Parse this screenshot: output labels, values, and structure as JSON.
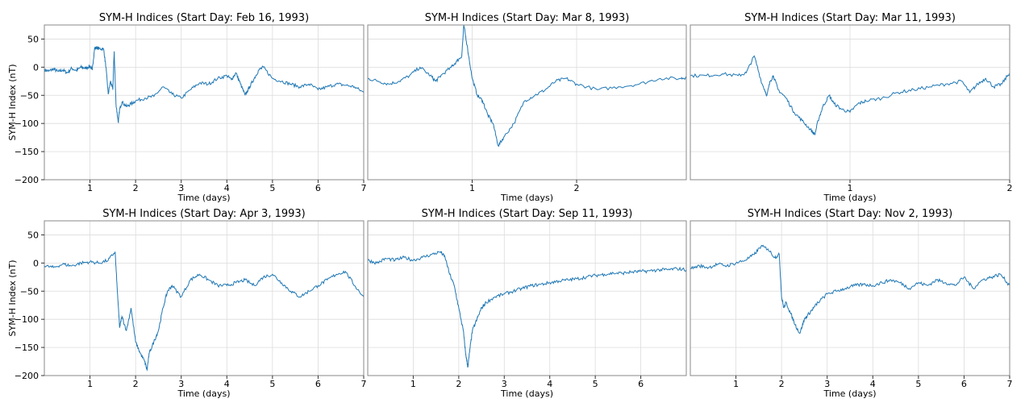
{
  "figure": {
    "ylabel": "SYM-H Index (nT)",
    "line_color": "#1f77b4"
  },
  "chart_data": [
    {
      "type": "line",
      "title": "SYM-H Indices (Start Day: Feb 16, 1993)",
      "xlabel": "Time (days)",
      "xlim": [
        0,
        7
      ],
      "ylim": [
        -200,
        75
      ],
      "xticks": [
        1,
        2,
        3,
        4,
        5,
        6,
        7
      ],
      "yticks": [
        50,
        0,
        -50,
        -100,
        -150,
        -200
      ],
      "grid": true,
      "series": [
        {
          "x": [
            0,
            0.1,
            0.2,
            0.3,
            0.4,
            0.5,
            0.6,
            0.7,
            0.8,
            0.9,
            1.0,
            1.05,
            1.1,
            1.15,
            1.2,
            1.3,
            1.35,
            1.4,
            1.45,
            1.5,
            1.53,
            1.57,
            1.62,
            1.65,
            1.7,
            1.8,
            1.9,
            2.0,
            2.2,
            2.4,
            2.6,
            2.8,
            3.0,
            3.2,
            3.4,
            3.6,
            3.8,
            4.0,
            4.1,
            4.2,
            4.3,
            4.4,
            4.5,
            4.6,
            4.7,
            4.8,
            5.0,
            5.2,
            5.4,
            5.6,
            5.8,
            6.0,
            6.2,
            6.4,
            6.6,
            6.8,
            7.0
          ],
          "y": [
            -5,
            -7,
            -3,
            -8,
            -5,
            -10,
            -2,
            -6,
            0,
            -2,
            2,
            -5,
            33,
            35,
            33,
            32,
            0,
            -48,
            -25,
            -40,
            28,
            -65,
            -98,
            -75,
            -62,
            -70,
            -65,
            -60,
            -55,
            -52,
            -35,
            -48,
            -55,
            -40,
            -28,
            -30,
            -20,
            -15,
            -22,
            -10,
            -30,
            -50,
            -35,
            -20,
            -5,
            0,
            -20,
            -25,
            -30,
            -35,
            -30,
            -40,
            -35,
            -30,
            -32,
            -35,
            -45
          ]
        }
      ]
    },
    {
      "type": "line",
      "title": "SYM-H Indices (Start Day: Mar 8, 1993)",
      "xlabel": "Time (days)",
      "xlim": [
        0,
        3.05
      ],
      "ylim": [
        -200,
        75
      ],
      "xticks": [
        1,
        2
      ],
      "yticks": [],
      "grid": true,
      "series": [
        {
          "x": [
            0,
            0.1,
            0.2,
            0.3,
            0.4,
            0.5,
            0.6,
            0.65,
            0.7,
            0.8,
            0.85,
            0.9,
            0.92,
            0.95,
            1.0,
            1.05,
            1.1,
            1.15,
            1.2,
            1.25,
            1.3,
            1.4,
            1.5,
            1.6,
            1.7,
            1.8,
            1.9,
            2.0,
            2.2,
            2.4,
            2.6,
            2.8,
            3.0,
            3.05
          ],
          "y": [
            -20,
            -25,
            -30,
            -25,
            -15,
            0,
            -15,
            -25,
            -15,
            0,
            10,
            20,
            75,
            40,
            -20,
            -50,
            -60,
            -85,
            -100,
            -140,
            -125,
            -100,
            -60,
            -50,
            -40,
            -25,
            -20,
            -30,
            -40,
            -35,
            -30,
            -20,
            -20,
            -18
          ]
        }
      ]
    },
    {
      "type": "line",
      "title": "SYM-H Indices (Start Day: Mar 11, 1993)",
      "xlabel": "Time (days)",
      "xlim": [
        0,
        2
      ],
      "ylim": [
        -200,
        75
      ],
      "xticks": [
        1,
        2
      ],
      "yticks": [],
      "grid": true,
      "series": [
        {
          "x": [
            0,
            0.1,
            0.2,
            0.3,
            0.35,
            0.4,
            0.45,
            0.48,
            0.5,
            0.52,
            0.55,
            0.6,
            0.65,
            0.7,
            0.75,
            0.78,
            0.8,
            0.83,
            0.87,
            0.9,
            0.95,
            1.0,
            1.05,
            1.1,
            1.2,
            1.3,
            1.4,
            1.5,
            1.6,
            1.7,
            1.75,
            1.8,
            1.85,
            1.9,
            1.95,
            2.0
          ],
          "y": [
            -15,
            -15,
            -12,
            -15,
            -10,
            20,
            -30,
            -50,
            -25,
            -15,
            -40,
            -55,
            -80,
            -95,
            -110,
            -120,
            -95,
            -70,
            -50,
            -65,
            -75,
            -80,
            -65,
            -60,
            -55,
            -45,
            -40,
            -35,
            -30,
            -25,
            -45,
            -30,
            -20,
            -35,
            -30,
            -10
          ]
        }
      ]
    },
    {
      "type": "line",
      "title": "SYM-H Indices (Start Day: Apr 3, 1993)",
      "xlabel": "Time (days)",
      "xlim": [
        0,
        7
      ],
      "ylim": [
        -200,
        75
      ],
      "xticks": [
        1,
        2,
        3,
        4,
        5,
        6,
        7
      ],
      "yticks": [
        50,
        0,
        -50,
        -100,
        -150,
        -200
      ],
      "grid": true,
      "series": [
        {
          "x": [
            0,
            0.2,
            0.4,
            0.6,
            0.8,
            1.0,
            1.2,
            1.4,
            1.55,
            1.6,
            1.65,
            1.7,
            1.8,
            1.9,
            2.0,
            2.1,
            2.2,
            2.25,
            2.3,
            2.4,
            2.5,
            2.6,
            2.7,
            2.8,
            3.0,
            3.2,
            3.4,
            3.6,
            3.8,
            4.0,
            4.2,
            4.4,
            4.6,
            4.8,
            5.0,
            5.2,
            5.4,
            5.6,
            5.8,
            6.0,
            6.2,
            6.4,
            6.6,
            6.8,
            7.0
          ],
          "y": [
            -5,
            -8,
            -2,
            -5,
            0,
            2,
            0,
            5,
            20,
            -50,
            -115,
            -95,
            -120,
            -80,
            -140,
            -160,
            -175,
            -190,
            -160,
            -140,
            -120,
            -80,
            -50,
            -40,
            -60,
            -30,
            -20,
            -30,
            -40,
            -40,
            -35,
            -30,
            -40,
            -25,
            -20,
            -35,
            -50,
            -60,
            -50,
            -40,
            -30,
            -20,
            -15,
            -40,
            -60
          ]
        }
      ]
    },
    {
      "type": "line",
      "title": "SYM-H Indices (Start Day: Sep 11, 1993)",
      "xlabel": "Time (days)",
      "xlim": [
        0,
        7
      ],
      "ylim": [
        -200,
        75
      ],
      "xticks": [
        1,
        2,
        3,
        4,
        5,
        6
      ],
      "yticks": [],
      "grid": true,
      "series": [
        {
          "x": [
            0,
            0.2,
            0.4,
            0.6,
            0.8,
            1.0,
            1.2,
            1.4,
            1.6,
            1.7,
            1.8,
            1.9,
            2.0,
            2.1,
            2.15,
            2.2,
            2.25,
            2.3,
            2.4,
            2.5,
            2.6,
            2.8,
            3.0,
            3.2,
            3.4,
            3.6,
            3.8,
            4.0,
            4.2,
            4.4,
            4.6,
            4.8,
            5.0,
            5.2,
            5.4,
            5.6,
            5.8,
            6.0,
            6.2,
            6.4,
            6.6,
            6.8,
            7.0
          ],
          "y": [
            5,
            0,
            8,
            5,
            10,
            5,
            10,
            15,
            20,
            10,
            -20,
            -40,
            -80,
            -120,
            -160,
            -185,
            -150,
            -120,
            -100,
            -80,
            -70,
            -60,
            -55,
            -50,
            -45,
            -40,
            -38,
            -35,
            -32,
            -30,
            -28,
            -25,
            -22,
            -20,
            -18,
            -18,
            -16,
            -15,
            -14,
            -12,
            -12,
            -10,
            -12
          ]
        }
      ]
    },
    {
      "type": "line",
      "title": "SYM-H Indices (Start Day: Nov 2, 1993)",
      "xlabel": "Time (days)",
      "xlim": [
        0,
        7
      ],
      "ylim": [
        -200,
        75
      ],
      "xticks": [
        1,
        2,
        3,
        4,
        5,
        6,
        7
      ],
      "yticks": [],
      "grid": true,
      "series": [
        {
          "x": [
            0,
            0.2,
            0.4,
            0.6,
            0.8,
            1.0,
            1.2,
            1.4,
            1.55,
            1.7,
            1.85,
            1.95,
            2.0,
            2.05,
            2.1,
            2.2,
            2.3,
            2.4,
            2.5,
            2.6,
            2.7,
            2.8,
            3.0,
            3.2,
            3.4,
            3.6,
            3.8,
            4.0,
            4.2,
            4.4,
            4.6,
            4.8,
            5.0,
            5.2,
            5.4,
            5.6,
            5.8,
            6.0,
            6.2,
            6.4,
            6.6,
            6.8,
            7.0
          ],
          "y": [
            -10,
            -5,
            -8,
            -2,
            -5,
            0,
            5,
            15,
            30,
            25,
            10,
            15,
            -60,
            -80,
            -70,
            -90,
            -110,
            -125,
            -100,
            -90,
            -80,
            -70,
            -55,
            -50,
            -45,
            -40,
            -38,
            -40,
            -35,
            -30,
            -35,
            -45,
            -35,
            -40,
            -30,
            -35,
            -40,
            -25,
            -45,
            -30,
            -25,
            -20,
            -40
          ]
        }
      ]
    }
  ]
}
